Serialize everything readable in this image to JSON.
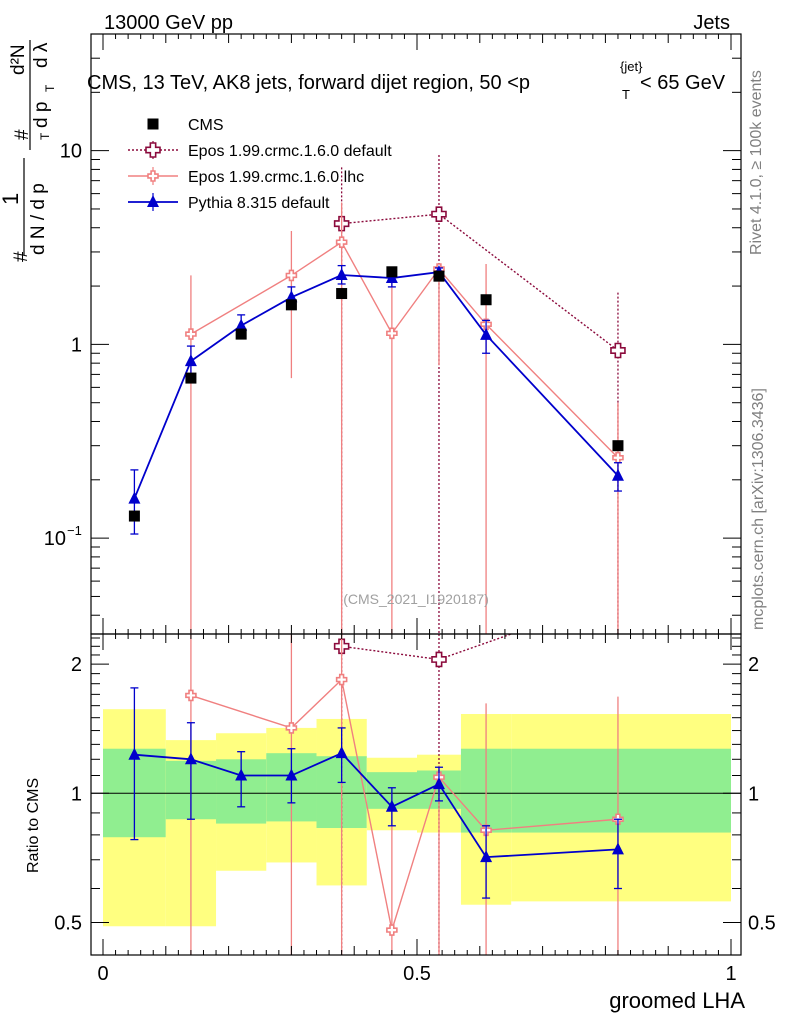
{
  "header": {
    "energy_label": "13000 GeV pp",
    "category_label": "Jets",
    "rivet_label": "Rivet 4.1.0, ≥ 100k events",
    "mcplots_label": "mcplots.cern.ch [arXiv:1306.3436]",
    "analysis_id": "(CMS_2021_I1920187)"
  },
  "chart_data": [
    {
      "type": "line",
      "panel": "main",
      "title": "CMS, 13 TeV, AK8 jets, forward dijet region, 50 <p_T^{jet}< 65 GeV",
      "title_parts": {
        "pre": "CMS, 13 TeV, AK8 jets, forward dijet region, 50 <p",
        "sub": "T",
        "sup": "{jet}",
        "post": "< 65 GeV"
      },
      "ylabel": "1/dN/dp_T · d²N/dp_T dλ",
      "ylabel_parts": {
        "hash": "#",
        "one": "1",
        "dN": "d N / d p",
        "T": "T",
        "d2N": "d²N",
        "dpT": "d p",
        "dl": "d λ"
      },
      "xlabel": "groomed LHA",
      "yscale": "log",
      "xlim": [
        -0.02,
        1.0
      ],
      "ylim": [
        0.032,
        40
      ],
      "y_ticks": [
        {
          "v": 0.1,
          "label": "10",
          "sup": "−1"
        },
        {
          "v": 1,
          "label": "1",
          "sup": ""
        },
        {
          "v": 10,
          "label": "10",
          "sup": ""
        }
      ],
      "x": [
        0.05,
        0.14,
        0.22,
        0.3,
        0.38,
        0.46,
        0.535,
        0.61,
        0.82
      ],
      "series": [
        {
          "name": "CMS",
          "style": "data",
          "color": "#000000",
          "x": [
            0.05,
            0.14,
            0.22,
            0.3,
            0.38,
            0.46,
            0.535,
            0.61,
            0.82
          ],
          "values": [
            0.13,
            0.67,
            1.13,
            1.6,
            1.83,
            2.37,
            2.25,
            1.7,
            0.3
          ]
        },
        {
          "name": "Epos 1.99.crmc.1.6.0 default",
          "style": "dotted-cross",
          "color": "#8b0a3c",
          "x": [
            0.38,
            0.535,
            0.82
          ],
          "values": [
            4.2,
            4.7,
            0.93
          ],
          "err_up": [
            8.2,
            9.5,
            1.85
          ],
          "err_down": [
            0.001,
            0.001,
            0.001
          ]
        },
        {
          "name": "Epos 1.99.crmc.1.6.0 lhc",
          "style": "solid-cross",
          "color": "#f08080",
          "x": [
            0.14,
            0.3,
            0.38,
            0.46,
            0.535,
            0.61,
            0.82
          ],
          "values": [
            1.13,
            2.27,
            3.37,
            1.14,
            2.45,
            1.27,
            0.26
          ],
          "err_up": [
            2.27,
            3.85,
            5.4,
            2.4,
            2.6,
            2.6,
            0.5
          ],
          "err_down": [
            0.001,
            0.67,
            0.001,
            0.001,
            0.78,
            0.001,
            0.001
          ]
        },
        {
          "name": "Pythia 8.315 default",
          "style": "solid-triangle",
          "color": "#0000cc",
          "x": [
            0.05,
            0.14,
            0.22,
            0.3,
            0.38,
            0.46,
            0.535,
            0.61,
            0.82
          ],
          "values": [
            0.16,
            0.82,
            1.25,
            1.75,
            2.28,
            2.2,
            2.36,
            1.12,
            0.21
          ],
          "err_up": [
            0.225,
            0.98,
            1.42,
            1.98,
            2.55,
            2.42,
            2.48,
            1.33,
            0.245
          ],
          "err_down": [
            0.105,
            0.68,
            1.09,
            1.52,
            2.05,
            1.98,
            2.24,
            0.9,
            0.175
          ]
        }
      ]
    },
    {
      "type": "line",
      "panel": "ratio",
      "ylabel": "Ratio to CMS",
      "xlabel": "groomed LHA",
      "yscale": "log",
      "xlim": [
        -0.02,
        1.0
      ],
      "ylim": [
        0.42,
        2.35
      ],
      "x_ticks": [
        {
          "v": 0,
          "label": "0"
        },
        {
          "v": 0.5,
          "label": "0.5"
        },
        {
          "v": 1,
          "label": "1"
        }
      ],
      "y_ticks": [
        {
          "v": 0.5,
          "label": "0.5"
        },
        {
          "v": 1,
          "label": "1"
        },
        {
          "v": 2,
          "label": "2"
        }
      ],
      "bins": [
        {
          "x0": 0.0,
          "x1": 0.1,
          "green": [
            0.79,
            1.27
          ],
          "yellow": [
            0.49,
            1.57
          ]
        },
        {
          "x0": 0.1,
          "x1": 0.18,
          "green": [
            0.87,
            1.19
          ],
          "yellow": [
            0.49,
            1.33
          ]
        },
        {
          "x0": 0.18,
          "x1": 0.26,
          "green": [
            0.85,
            1.2
          ],
          "yellow": [
            0.66,
            1.38
          ]
        },
        {
          "x0": 0.26,
          "x1": 0.34,
          "green": [
            0.86,
            1.24
          ],
          "yellow": [
            0.69,
            1.42
          ]
        },
        {
          "x0": 0.34,
          "x1": 0.42,
          "green": [
            0.83,
            1.22
          ],
          "yellow": [
            0.61,
            1.49
          ]
        },
        {
          "x0": 0.42,
          "x1": 0.5,
          "green": [
            0.92,
            1.12
          ],
          "yellow": [
            0.82,
            1.21
          ]
        },
        {
          "x0": 0.5,
          "x1": 0.57,
          "green": [
            0.92,
            1.13
          ],
          "yellow": [
            0.81,
            1.23
          ]
        },
        {
          "x0": 0.57,
          "x1": 0.65,
          "green": [
            0.81,
            1.27
          ],
          "yellow": [
            0.55,
            1.53
          ]
        },
        {
          "x0": 0.65,
          "x1": 1.0,
          "green": [
            0.81,
            1.27
          ],
          "yellow": [
            0.56,
            1.53
          ]
        }
      ],
      "series": [
        {
          "name": "Epos 1.99.crmc.1.6.0 default",
          "style": "dotted-cross",
          "color": "#8b0a3c",
          "x": [
            0.38,
            0.535,
            0.65
          ],
          "values": [
            2.2,
            2.05,
            2.35
          ],
          "err_up": [
            3.0,
            3.0,
            2.35
          ],
          "err_down": [
            0.3,
            0.3,
            2.35
          ],
          "markers": [
            true,
            true,
            false
          ]
        },
        {
          "name": "Epos 1.99.crmc.1.6.0 lhc",
          "style": "solid-cross",
          "color": "#f08080",
          "x": [
            0.14,
            0.3,
            0.38,
            0.46,
            0.535,
            0.61,
            0.82
          ],
          "values": [
            1.69,
            1.42,
            1.84,
            0.48,
            1.09,
            0.82,
            0.87
          ],
          "err_up": [
            3.0,
            3.0,
            3.0,
            1.0,
            1.16,
            1.62,
            1.68
          ],
          "err_down": [
            0.3,
            0.38,
            0.3,
            0.3,
            0.34,
            0.3,
            0.3
          ]
        },
        {
          "name": "Pythia 8.315 default",
          "style": "solid-triangle",
          "color": "#0000cc",
          "x": [
            0.05,
            0.14,
            0.22,
            0.3,
            0.38,
            0.46,
            0.535,
            0.61,
            0.82
          ],
          "values": [
            1.23,
            1.2,
            1.1,
            1.1,
            1.24,
            0.93,
            1.05,
            0.71,
            0.74
          ],
          "err_up": [
            1.76,
            1.46,
            1.25,
            1.27,
            1.42,
            1.03,
            1.15,
            0.84,
            0.87
          ],
          "err_down": [
            0.78,
            0.87,
            0.93,
            0.95,
            1.06,
            0.84,
            0.96,
            0.57,
            0.6
          ]
        }
      ]
    }
  ],
  "legend": [
    {
      "label": "CMS",
      "style": "data"
    },
    {
      "label": "Epos 1.99.crmc.1.6.0 default",
      "style": "dotted-cross"
    },
    {
      "label": "Epos 1.99.crmc.1.6.0 lhc",
      "style": "solid-cross"
    },
    {
      "label": "Pythia 8.315 default",
      "style": "solid-triangle"
    }
  ]
}
